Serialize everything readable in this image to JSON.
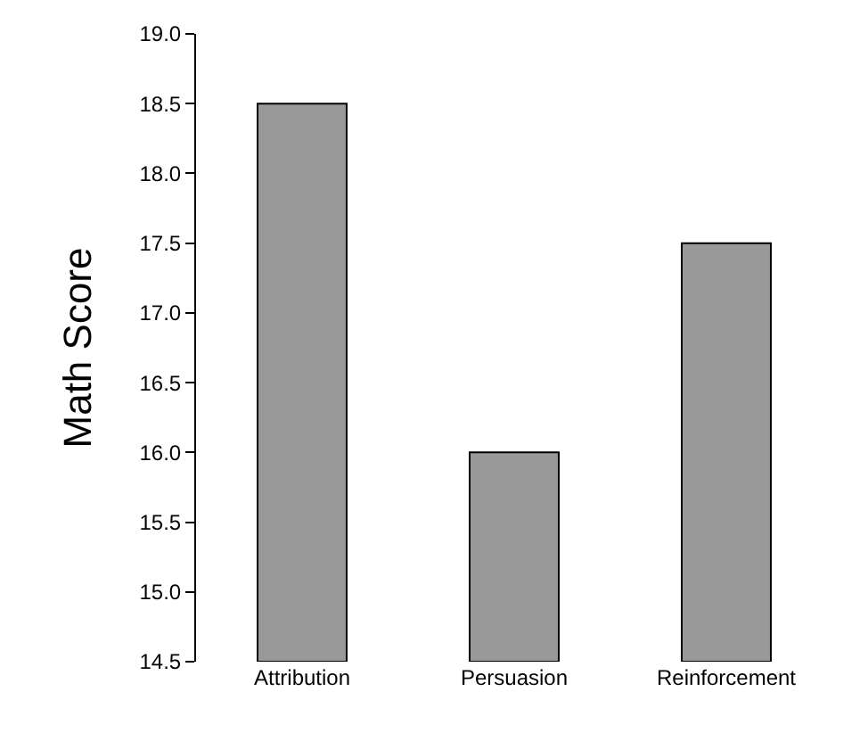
{
  "chart_data": {
    "type": "bar",
    "ylabel": "Math Score",
    "categories": [
      "Attribution",
      "Persuasion",
      "Reinforcement"
    ],
    "values": [
      18.5,
      16.0,
      17.5
    ],
    "color": "#999999",
    "ylim": [
      14.5,
      19.0
    ],
    "yticks": [
      14.5,
      {
        "value": 15,
        "label": "15.0"
      },
      15.5,
      {
        "value": 16,
        "label": "16.0"
      },
      16.5,
      {
        "value": 17,
        "label": "17.0"
      },
      17.5,
      {
        "value": 18,
        "label": "18.0"
      },
      18.5,
      {
        "value": 19,
        "label": "19.0"
      }
    ]
  }
}
